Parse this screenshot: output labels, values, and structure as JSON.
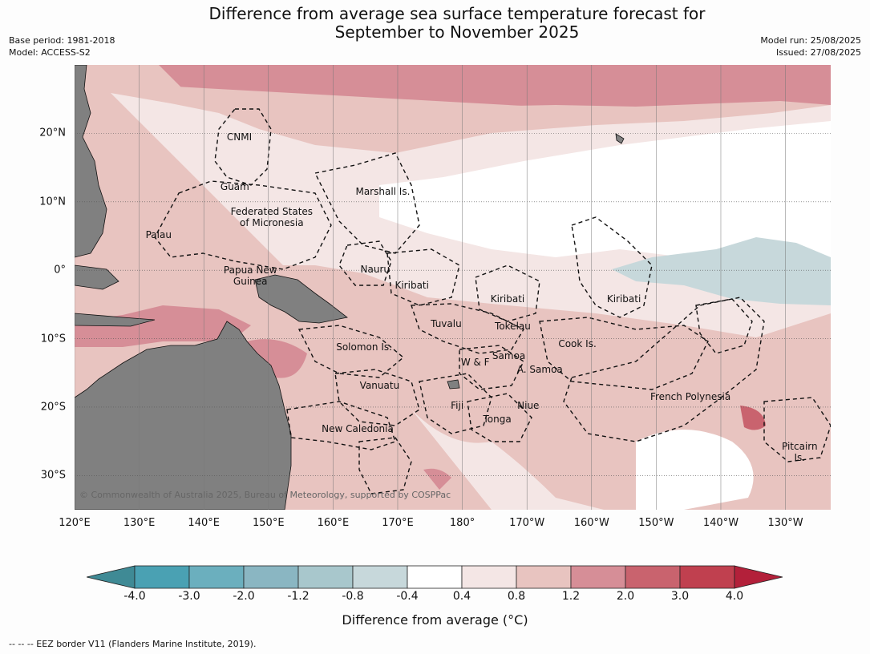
{
  "header": {
    "title_line1": "Difference from average sea surface temperature forecast for",
    "title_line2": "September to November 2025",
    "base_period": "Base period: 1981-2018",
    "model": "Model: ACCESS-S2",
    "model_run": "Model run: 25/08/2025",
    "issued": "Issued: 27/08/2025"
  },
  "map": {
    "lat_range": [
      -35,
      30
    ],
    "lon_range": [
      120,
      237
    ],
    "lat_ticks": [
      {
        "lat": 20,
        "label": "20°N"
      },
      {
        "lat": 10,
        "label": "10°N"
      },
      {
        "lat": 0,
        "label": "0°"
      },
      {
        "lat": -10,
        "label": "10°S"
      },
      {
        "lat": -20,
        "label": "20°S"
      },
      {
        "lat": -30,
        "label": "30°S"
      }
    ],
    "lon_ticks": [
      {
        "lon": 120,
        "label": "120°E"
      },
      {
        "lon": 130,
        "label": "130°E"
      },
      {
        "lon": 140,
        "label": "140°E"
      },
      {
        "lon": 150,
        "label": "150°E"
      },
      {
        "lon": 160,
        "label": "160°E"
      },
      {
        "lon": 170,
        "label": "170°E"
      },
      {
        "lon": 180,
        "label": "180°"
      },
      {
        "lon": 190,
        "label": "170°W"
      },
      {
        "lon": 200,
        "label": "160°W"
      },
      {
        "lon": 210,
        "label": "150°W"
      },
      {
        "lon": 220,
        "label": "140°W"
      },
      {
        "lon": 230,
        "label": "130°W"
      }
    ],
    "places": [
      {
        "name": "CNMI",
        "lat": 19.5,
        "lon": 145.5
      },
      {
        "name": "Guam",
        "lat": 12.2,
        "lon": 144.8
      },
      {
        "name": "Marshall Is.",
        "lat": 11.5,
        "lon": 167.7
      },
      {
        "name": "Federated States of Micronesia",
        "lat": 7.7,
        "lon": 150.5
      },
      {
        "name": "Palau",
        "lat": 5.2,
        "lon": 133
      },
      {
        "name": "Nauru",
        "lat": 0.1,
        "lon": 166.5
      },
      {
        "name": "Papua New Guinea",
        "lat": -0.8,
        "lon": 147.2
      },
      {
        "name": "Kiribati",
        "lat": -2.2,
        "lon": 172.2
      },
      {
        "name": "Kiribati",
        "lat": -4.2,
        "lon": 187
      },
      {
        "name": "Kiribati",
        "lat": -4.2,
        "lon": 205
      },
      {
        "name": "Tuvalu",
        "lat": -7.8,
        "lon": 177.5
      },
      {
        "name": "Tokelau",
        "lat": -8.2,
        "lon": 187.8
      },
      {
        "name": "Cook Is.",
        "lat": -10.8,
        "lon": 197.8
      },
      {
        "name": "Solomon Is.",
        "lat": -11.2,
        "lon": 164.8
      },
      {
        "name": "Samoa",
        "lat": -12.5,
        "lon": 187.2
      },
      {
        "name": "W & F",
        "lat": -13.5,
        "lon": 182
      },
      {
        "name": "A. Samoa",
        "lat": -14.5,
        "lon": 192
      },
      {
        "name": "Vanuatu",
        "lat": -16.8,
        "lon": 167.2
      },
      {
        "name": "Fiji",
        "lat": -19.8,
        "lon": 179.2
      },
      {
        "name": "Niue",
        "lat": -19.8,
        "lon": 190.2
      },
      {
        "name": "Tonga",
        "lat": -21.8,
        "lon": 185.4
      },
      {
        "name": "French Polynesia",
        "lat": -18.5,
        "lon": 215.3
      },
      {
        "name": "New Caledonia",
        "lat": -23.2,
        "lon": 163.8
      },
      {
        "name": "Pitcairn Is.",
        "lat": -26.6,
        "lon": 232.2
      }
    ],
    "copyright": "© Commonwealth of Australia 2025, Bureau of Meteorology, supported by COSPPac"
  },
  "colorbar": {
    "label": "Difference from average (°C)",
    "ticks": [
      "-4.0",
      "-3.0",
      "-2.0",
      "-1.2",
      "-0.8",
      "-0.4",
      "0.4",
      "0.8",
      "1.2",
      "2.0",
      "3.0",
      "4.0"
    ],
    "colors": [
      "#3f8a95",
      "#4aa1b3",
      "#6bafbe",
      "#8ab6c2",
      "#a8c7cc",
      "#c7d8db",
      "#ffffff",
      "#f4e6e5",
      "#e8c4c0",
      "#d68e97",
      "#c9636e",
      "#c0404f",
      "#b3203a"
    ]
  },
  "footer": "--  --  -- EEZ border V11 (Flanders Marine Institute, 2019)."
}
